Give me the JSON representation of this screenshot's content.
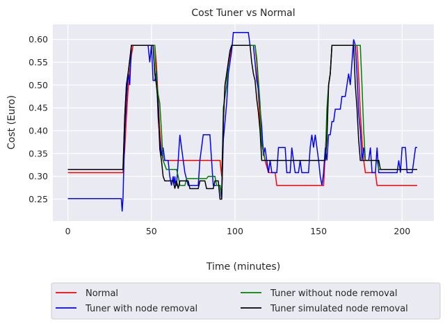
{
  "chart_data": {
    "type": "line",
    "title": "Cost Tuner vs Normal",
    "xlabel": "Time (minutes)",
    "ylabel": "Cost (Euro)",
    "xlim": [
      -9,
      219
    ],
    "ylim": [
      0.202,
      0.633
    ],
    "xticks": [
      "0",
      "50",
      "100",
      "150",
      "200"
    ],
    "yticks": [
      "0.25",
      "0.30",
      "0.35",
      "0.40",
      "0.45",
      "0.50",
      "0.55",
      "0.60"
    ],
    "grid": true,
    "background": "#eaeaf2",
    "legend_position": "below plot, two columns",
    "series": [
      {
        "name": "Normal",
        "color": "#ff0000",
        "points": [
          [
            0,
            0.308
          ],
          [
            33,
            0.308
          ],
          [
            34,
            0.36
          ],
          [
            35,
            0.43
          ],
          [
            36,
            0.49
          ],
          [
            37,
            0.53
          ],
          [
            38,
            0.565
          ],
          [
            39,
            0.587
          ],
          [
            52,
            0.587
          ],
          [
            53,
            0.545
          ],
          [
            54,
            0.47
          ],
          [
            55,
            0.4
          ],
          [
            56,
            0.355
          ],
          [
            57,
            0.335
          ],
          [
            91,
            0.335
          ],
          [
            92,
            0.3
          ],
          [
            93,
            0.42
          ],
          [
            94,
            0.5
          ],
          [
            96,
            0.545
          ],
          [
            98,
            0.587
          ],
          [
            112,
            0.587
          ],
          [
            113,
            0.55
          ],
          [
            114,
            0.48
          ],
          [
            115,
            0.42
          ],
          [
            117,
            0.36
          ],
          [
            118,
            0.335
          ],
          [
            120,
            0.308
          ],
          [
            124,
            0.308
          ],
          [
            125,
            0.28
          ],
          [
            153,
            0.28
          ],
          [
            155,
            0.42
          ],
          [
            156,
            0.5
          ],
          [
            157,
            0.525
          ],
          [
            158,
            0.587
          ],
          [
            173,
            0.587
          ],
          [
            174,
            0.52
          ],
          [
            175,
            0.44
          ],
          [
            176,
            0.38
          ],
          [
            177,
            0.335
          ],
          [
            178,
            0.308
          ],
          [
            184,
            0.308
          ],
          [
            185,
            0.28
          ],
          [
            209,
            0.28
          ]
        ]
      },
      {
        "name": "Tuner with node removal",
        "color": "#0000ff",
        "points": [
          [
            0,
            0.251
          ],
          [
            32,
            0.251
          ],
          [
            32.5,
            0.223
          ],
          [
            33,
            0.251
          ],
          [
            34,
            0.4
          ],
          [
            35,
            0.47
          ],
          [
            36,
            0.525
          ],
          [
            37,
            0.5
          ],
          [
            38,
            0.587
          ],
          [
            48,
            0.587
          ],
          [
            49,
            0.55
          ],
          [
            50,
            0.587
          ],
          [
            51,
            0.51
          ],
          [
            52,
            0.51
          ],
          [
            53,
            0.53
          ],
          [
            54,
            0.43
          ],
          [
            55,
            0.38
          ],
          [
            56,
            0.345
          ],
          [
            57,
            0.363
          ],
          [
            58,
            0.335
          ],
          [
            60,
            0.335
          ],
          [
            61,
            0.3
          ],
          [
            62,
            0.28
          ],
          [
            63,
            0.3
          ],
          [
            63.5,
            0.28
          ],
          [
            64,
            0.3
          ],
          [
            64.5,
            0.28
          ],
          [
            65,
            0.28
          ],
          [
            66,
            0.335
          ],
          [
            67,
            0.391
          ],
          [
            68,
            0.363
          ],
          [
            69,
            0.335
          ],
          [
            70,
            0.308
          ],
          [
            72,
            0.28
          ],
          [
            78,
            0.28
          ],
          [
            79,
            0.335
          ],
          [
            80,
            0.363
          ],
          [
            81,
            0.391
          ],
          [
            85,
            0.391
          ],
          [
            86,
            0.335
          ],
          [
            87,
            0.28
          ],
          [
            91,
            0.28
          ],
          [
            92,
            0.251
          ],
          [
            93,
            0.38
          ],
          [
            95,
            0.46
          ],
          [
            96,
            0.525
          ],
          [
            97,
            0.55
          ],
          [
            98,
            0.575
          ],
          [
            99,
            0.615
          ],
          [
            108,
            0.615
          ],
          [
            109,
            0.587
          ],
          [
            111,
            0.587
          ],
          [
            112,
            0.55
          ],
          [
            113,
            0.51
          ],
          [
            114,
            0.49
          ],
          [
            115,
            0.45
          ],
          [
            116,
            0.41
          ],
          [
            117,
            0.345
          ],
          [
            118,
            0.363
          ],
          [
            119,
            0.335
          ],
          [
            120,
            0.308
          ],
          [
            121,
            0.335
          ],
          [
            122,
            0.308
          ],
          [
            125,
            0.308
          ],
          [
            126,
            0.363
          ],
          [
            130,
            0.363
          ],
          [
            131,
            0.308
          ],
          [
            133,
            0.308
          ],
          [
            134,
            0.363
          ],
          [
            135,
            0.335
          ],
          [
            136,
            0.308
          ],
          [
            138,
            0.308
          ],
          [
            139,
            0.335
          ],
          [
            140,
            0.308
          ],
          [
            144,
            0.308
          ],
          [
            145,
            0.363
          ],
          [
            146,
            0.391
          ],
          [
            147,
            0.363
          ],
          [
            148,
            0.391
          ],
          [
            149,
            0.363
          ],
          [
            150,
            0.335
          ],
          [
            151,
            0.3
          ],
          [
            152,
            0.28
          ],
          [
            153,
            0.308
          ],
          [
            154,
            0.363
          ],
          [
            155,
            0.335
          ],
          [
            156,
            0.391
          ],
          [
            157,
            0.391
          ],
          [
            158,
            0.42
          ],
          [
            159,
            0.42
          ],
          [
            160,
            0.447
          ],
          [
            163,
            0.447
          ],
          [
            164,
            0.475
          ],
          [
            166,
            0.475
          ],
          [
            167,
            0.5
          ],
          [
            168,
            0.525
          ],
          [
            169,
            0.5
          ],
          [
            170,
            0.55
          ],
          [
            171,
            0.6
          ],
          [
            172,
            0.587
          ],
          [
            173,
            0.525
          ],
          [
            174,
            0.44
          ],
          [
            175,
            0.4
          ],
          [
            176,
            0.335
          ],
          [
            177,
            0.363
          ],
          [
            178,
            0.335
          ],
          [
            180,
            0.335
          ],
          [
            181,
            0.363
          ],
          [
            182,
            0.308
          ],
          [
            184,
            0.308
          ],
          [
            185,
            0.363
          ],
          [
            186,
            0.308
          ],
          [
            197,
            0.308
          ],
          [
            198,
            0.335
          ],
          [
            199,
            0.308
          ],
          [
            200,
            0.363
          ],
          [
            202,
            0.363
          ],
          [
            203,
            0.308
          ],
          [
            206,
            0.308
          ],
          [
            207,
            0.335
          ],
          [
            208,
            0.363
          ],
          [
            209,
            0.363
          ]
        ]
      },
      {
        "name": "Tuner without node removal",
        "color": "#008000",
        "points": [
          [
            0,
            0.315
          ],
          [
            33,
            0.315
          ],
          [
            34,
            0.43
          ],
          [
            35,
            0.5
          ],
          [
            36,
            0.525
          ],
          [
            37,
            0.555
          ],
          [
            38,
            0.587
          ],
          [
            52,
            0.587
          ],
          [
            53,
            0.51
          ],
          [
            54,
            0.48
          ],
          [
            55,
            0.46
          ],
          [
            56,
            0.4
          ],
          [
            57,
            0.335
          ],
          [
            59,
            0.315
          ],
          [
            65,
            0.315
          ],
          [
            66,
            0.3
          ],
          [
            67,
            0.28
          ],
          [
            70,
            0.28
          ],
          [
            71,
            0.295
          ],
          [
            83,
            0.295
          ],
          [
            84,
            0.3
          ],
          [
            88,
            0.3
          ],
          [
            89,
            0.28
          ],
          [
            91,
            0.28
          ],
          [
            92,
            0.26
          ],
          [
            93,
            0.45
          ],
          [
            95,
            0.5
          ],
          [
            96,
            0.55
          ],
          [
            97,
            0.575
          ],
          [
            98,
            0.587
          ],
          [
            112,
            0.587
          ],
          [
            113,
            0.56
          ],
          [
            114,
            0.51
          ],
          [
            115,
            0.46
          ],
          [
            116,
            0.37
          ],
          [
            118,
            0.335
          ],
          [
            154,
            0.335
          ],
          [
            155,
            0.45
          ],
          [
            156,
            0.5
          ],
          [
            157,
            0.525
          ],
          [
            158,
            0.587
          ],
          [
            175,
            0.587
          ],
          [
            176,
            0.5
          ],
          [
            177,
            0.4
          ],
          [
            178,
            0.335
          ],
          [
            185,
            0.335
          ],
          [
            186,
            0.315
          ],
          [
            209,
            0.315
          ]
        ]
      },
      {
        "name": "Tuner simulated node removal",
        "color": "#000000",
        "points": [
          [
            0,
            0.315
          ],
          [
            33,
            0.315
          ],
          [
            34,
            0.43
          ],
          [
            35,
            0.5
          ],
          [
            36,
            0.525
          ],
          [
            37,
            0.555
          ],
          [
            38,
            0.587
          ],
          [
            51,
            0.587
          ],
          [
            52,
            0.525
          ],
          [
            53,
            0.5
          ],
          [
            54,
            0.46
          ],
          [
            55,
            0.36
          ],
          [
            56,
            0.335
          ],
          [
            57,
            0.3
          ],
          [
            58,
            0.29
          ],
          [
            63,
            0.29
          ],
          [
            64,
            0.273
          ],
          [
            65,
            0.29
          ],
          [
            66,
            0.273
          ],
          [
            67,
            0.29
          ],
          [
            72,
            0.29
          ],
          [
            73,
            0.273
          ],
          [
            78,
            0.273
          ],
          [
            79,
            0.29
          ],
          [
            82,
            0.29
          ],
          [
            83,
            0.273
          ],
          [
            87,
            0.273
          ],
          [
            88,
            0.29
          ],
          [
            90,
            0.29
          ],
          [
            91,
            0.25
          ],
          [
            92,
            0.25
          ],
          [
            93,
            0.42
          ],
          [
            94,
            0.5
          ],
          [
            96,
            0.55
          ],
          [
            97,
            0.575
          ],
          [
            98,
            0.587
          ],
          [
            109,
            0.587
          ],
          [
            110,
            0.55
          ],
          [
            111,
            0.525
          ],
          [
            112,
            0.51
          ],
          [
            113,
            0.47
          ],
          [
            114,
            0.44
          ],
          [
            115,
            0.4
          ],
          [
            116,
            0.335
          ],
          [
            154,
            0.335
          ],
          [
            155,
            0.38
          ],
          [
            156,
            0.5
          ],
          [
            157,
            0.525
          ],
          [
            158,
            0.587
          ],
          [
            171,
            0.587
          ],
          [
            172,
            0.5
          ],
          [
            173,
            0.45
          ],
          [
            174,
            0.38
          ],
          [
            175,
            0.335
          ],
          [
            186,
            0.335
          ],
          [
            187,
            0.315
          ],
          [
            209,
            0.315
          ]
        ]
      }
    ]
  }
}
